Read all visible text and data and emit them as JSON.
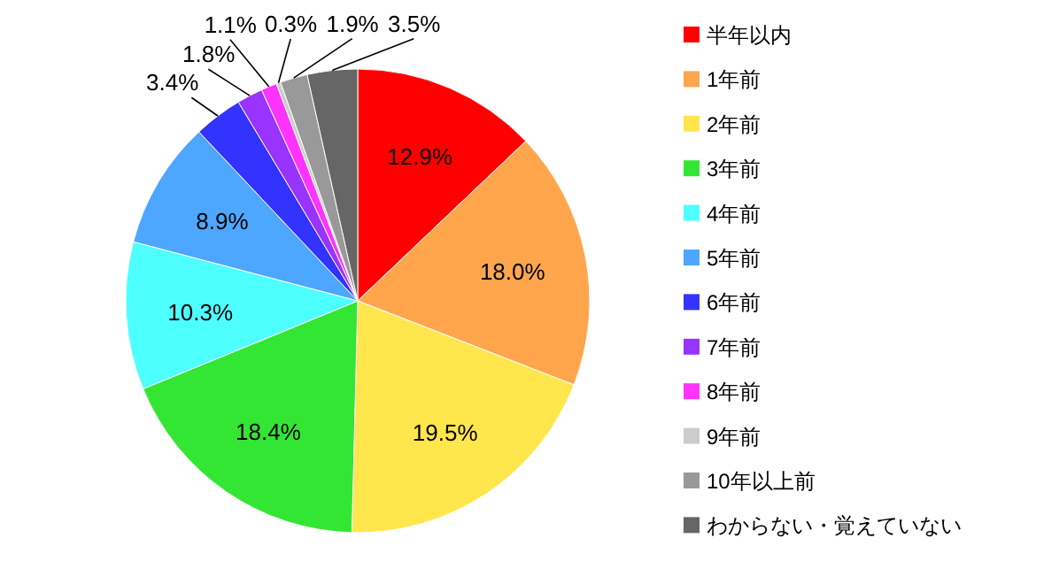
{
  "chart_data": {
    "type": "pie",
    "categories": [
      "半年以内",
      "1年前",
      "2年前",
      "3年前",
      "4年前",
      "5年前",
      "6年前",
      "7年前",
      "8年前",
      "9年前",
      "10年以上前",
      "わからない・覚えていない"
    ],
    "values": [
      12.9,
      18.0,
      19.5,
      18.4,
      10.3,
      8.9,
      3.4,
      1.8,
      1.1,
      0.3,
      1.9,
      3.5
    ],
    "colors": [
      "#ff0000",
      "#ffa64d",
      "#ffe64d",
      "#33e633",
      "#4dffff",
      "#4da6ff",
      "#3333ff",
      "#9933ff",
      "#ff33ff",
      "#cccccc",
      "#999999",
      "#666666"
    ],
    "value_labels": [
      "12.9%",
      "18.0%",
      "19.5%",
      "18.4%",
      "10.3%",
      "8.9%",
      "3.4%",
      "1.8%",
      "1.1%",
      "0.3%",
      "1.9%",
      "3.5%"
    ],
    "legend": "right"
  }
}
